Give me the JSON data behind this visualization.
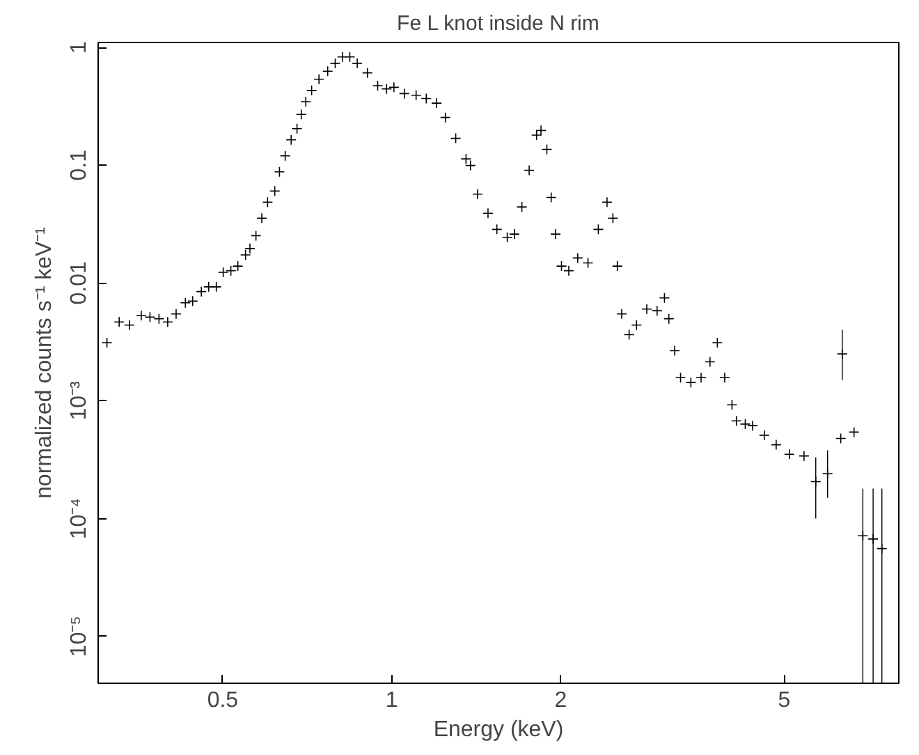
{
  "chart_data": {
    "type": "scatter",
    "title": "Fe L knot inside N rim",
    "xlabel": "Energy (keV)",
    "ylabel": "normalized counts s⁻¹ keV⁻¹",
    "log": "xy",
    "marker": "cross",
    "xlim": [
      0.3,
      8
    ],
    "ylim": [
      4e-06,
      1.1
    ],
    "xticks": [
      0.5,
      1,
      2,
      5
    ],
    "yticks": [
      {
        "value": 1e-05,
        "label": "10⁻⁵"
      },
      {
        "value": 0.0001,
        "label": "10⁻⁴"
      },
      {
        "value": 0.001,
        "label": "10⁻³"
      },
      0.01,
      0.1,
      1
    ],
    "series": [
      {
        "color": "#000000",
        "x": [
          0.311,
          0.327,
          0.341,
          0.358,
          0.371,
          0.385,
          0.399,
          0.413,
          0.429,
          0.442,
          0.458,
          0.472,
          0.487,
          0.501,
          0.517,
          0.532,
          0.549,
          0.559,
          0.573,
          0.587,
          0.601,
          0.619,
          0.631,
          0.646,
          0.662,
          0.678,
          0.69,
          0.703,
          0.72,
          0.742,
          0.769,
          0.793,
          0.817,
          0.842,
          0.868,
          0.905,
          0.944,
          0.979,
          1.009,
          1.053,
          1.105,
          1.152,
          1.202,
          1.246,
          1.3,
          1.356,
          1.381,
          1.422,
          1.484,
          1.539,
          1.606,
          1.654,
          1.705,
          1.757,
          1.811,
          1.844,
          1.889,
          1.923,
          1.958,
          2.006,
          2.067,
          2.144,
          2.236,
          2.333,
          2.418,
          2.477,
          2.522,
          2.568,
          2.647,
          2.729,
          2.846,
          2.969,
          3.06,
          3.116,
          3.191,
          3.269,
          3.41,
          3.556,
          3.688,
          3.801,
          3.917,
          4.036,
          4.11,
          4.262,
          4.392,
          4.608,
          4.838,
          5.107,
          5.424,
          5.691,
          5.973,
          6.305,
          6.344,
          6.658,
          6.903,
          7.2,
          7.464
        ],
        "values": [
          0.00311,
          0.00467,
          0.00439,
          0.00529,
          0.00513,
          0.00497,
          0.00467,
          0.00546,
          0.00679,
          0.00701,
          0.00845,
          0.00927,
          0.00927,
          0.0123,
          0.0127,
          0.0139,
          0.0173,
          0.0196,
          0.0252,
          0.0355,
          0.0485,
          0.0603,
          0.0877,
          0.12,
          0.164,
          0.204,
          0.27,
          0.346,
          0.431,
          0.536,
          0.627,
          0.732,
          0.83,
          0.83,
          0.732,
          0.607,
          0.473,
          0.444,
          0.458,
          0.405,
          0.392,
          0.368,
          0.336,
          0.254,
          0.169,
          0.113,
          0.0994,
          0.0567,
          0.039,
          0.0285,
          0.0244,
          0.026,
          0.0442,
          0.0905,
          0.18,
          0.197,
          0.136,
          0.0532,
          0.026,
          0.0139,
          0.0127,
          0.0163,
          0.0148,
          0.0285,
          0.0485,
          0.0355,
          0.0139,
          0.00546,
          0.00364,
          0.00439,
          0.006,
          0.00581,
          0.00746,
          0.00497,
          0.00266,
          0.00157,
          0.00143,
          0.00157,
          0.00214,
          0.00311,
          0.00157,
          0.000923,
          0.000675,
          0.000634,
          0.000615,
          0.00051,
          0.000423,
          0.000351,
          0.00034,
          0.000206,
          0.000241,
          0.000479,
          0.0025,
          0.000542,
          7.14e-05,
          6.71e-05,
          5.56e-05
        ],
        "errors": [
          null,
          null,
          null,
          null,
          null,
          null,
          null,
          null,
          null,
          null,
          null,
          null,
          null,
          null,
          null,
          null,
          null,
          null,
          null,
          null,
          null,
          null,
          null,
          null,
          null,
          null,
          null,
          null,
          null,
          null,
          null,
          null,
          null,
          null,
          null,
          null,
          null,
          null,
          null,
          null,
          null,
          null,
          null,
          null,
          null,
          null,
          null,
          null,
          null,
          null,
          null,
          null,
          null,
          null,
          null,
          null,
          null,
          null,
          null,
          null,
          null,
          null,
          null,
          null,
          null,
          null,
          null,
          null,
          null,
          null,
          null,
          null,
          null,
          null,
          null,
          null,
          null,
          null,
          null,
          null,
          null,
          null,
          null,
          null,
          null,
          null,
          null,
          null,
          null,
          [
            0.0001,
            0.00033
          ],
          [
            0.00015,
            0.00038
          ],
          null,
          [
            0.0015,
            0.004
          ],
          null,
          [
            4e-06,
            0.00018
          ],
          [
            4e-06,
            0.00018
          ],
          [
            4e-06,
            0.00018
          ]
        ]
      }
    ]
  }
}
